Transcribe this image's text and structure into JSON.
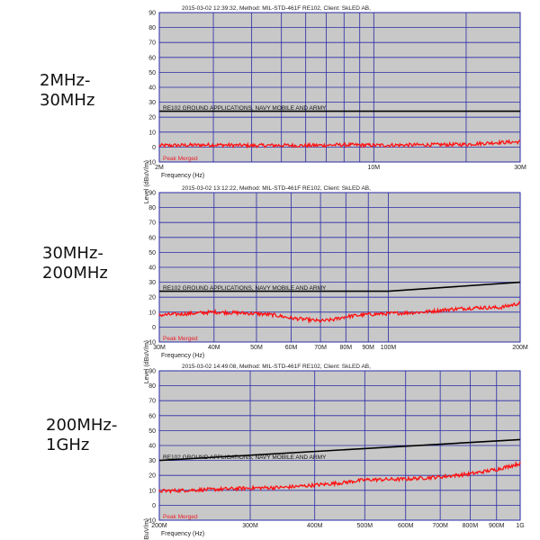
{
  "range_labels": [
    "2MHz-\n30MHz",
    "30MHz-\n200MHz",
    "200MHz-\n1GHz"
  ],
  "colors": {
    "plot_bg": "#c8c8c8",
    "grid": "#2a2aa8",
    "limit": "#000000",
    "measured": "#ff1010",
    "legend_text": "#e8202a"
  },
  "chart_data": [
    {
      "type": "line",
      "header": "2015-03-02 12:39:32,  Method: MIL-STD-461F RE102,  Client: SkLED AB,",
      "xlabel": "Frequency (Hz)",
      "ylabel": "Level (dBuV/m)",
      "x_scale": "log",
      "xlim": [
        2000000,
        30000000
      ],
      "ylim": [
        -10,
        90
      ],
      "yticks": [
        90,
        80,
        70,
        60,
        50,
        40,
        30,
        20,
        10,
        0,
        -10
      ],
      "xtick_labels": [
        {
          "value": 2000000,
          "label": "2M"
        },
        {
          "value": 10000000,
          "label": "10M"
        },
        {
          "value": 30000000,
          "label": "30M"
        }
      ],
      "grid_x": [
        2000000,
        3000000,
        4000000,
        5000000,
        6000000,
        7000000,
        8000000,
        9000000,
        10000000,
        20000000,
        30000000
      ],
      "limit_label": "RE102 GROUND APPLICATIONS, NAVY MOBILE AND ARMY",
      "series_label": "Peak Merged",
      "limit_line": {
        "x": [
          2000000,
          30000000
        ],
        "y": [
          24,
          24
        ]
      },
      "measured": {
        "x": [
          2000000,
          3000000,
          4000000,
          5000000,
          6000000,
          8000000,
          10000000,
          15000000,
          20000000,
          25000000,
          30000000
        ],
        "y": [
          1,
          1.5,
          1,
          1.2,
          1,
          1.5,
          1.2,
          1.5,
          1.8,
          3,
          3.5
        ]
      }
    },
    {
      "type": "line",
      "header": "2015-03-02 13:12:22,  Method: MIL-STD-461F RE102,  Client: SkLED AB,",
      "xlabel": "Frequency (Hz)",
      "ylabel": "Level (dBuV/m)",
      "x_scale": "log",
      "xlim": [
        30000000,
        200000000
      ],
      "ylim": [
        -10,
        90
      ],
      "yticks": [
        90,
        80,
        70,
        60,
        50,
        40,
        30,
        20,
        10,
        0,
        -10
      ],
      "xtick_labels": [
        {
          "value": 30000000,
          "label": "30M"
        },
        {
          "value": 40000000,
          "label": "40M"
        },
        {
          "value": 50000000,
          "label": "50M"
        },
        {
          "value": 60000000,
          "label": "60M"
        },
        {
          "value": 70000000,
          "label": "70M"
        },
        {
          "value": 80000000,
          "label": "80M"
        },
        {
          "value": 90000000,
          "label": "90M"
        },
        {
          "value": 100000000,
          "label": "100M"
        },
        {
          "value": 200000000,
          "label": "200M"
        }
      ],
      "grid_x": [
        30000000,
        40000000,
        50000000,
        60000000,
        70000000,
        80000000,
        90000000,
        100000000,
        200000000
      ],
      "limit_label": "RE102 GROUND APPLICATIONS, NAVY MOBILE AND ARMY",
      "series_label": "Peak Merged",
      "limit_line": {
        "x": [
          30000000,
          100000000,
          200000000
        ],
        "y": [
          24,
          24,
          30
        ]
      },
      "measured": {
        "x": [
          30000000,
          35000000,
          40000000,
          45000000,
          50000000,
          55000000,
          60000000,
          65000000,
          70000000,
          75000000,
          80000000,
          90000000,
          100000000,
          120000000,
          140000000,
          160000000,
          180000000,
          200000000
        ],
        "y": [
          8,
          9,
          10,
          9.5,
          9,
          8,
          6,
          5,
          4,
          5,
          7,
          8.5,
          9,
          10,
          12,
          13,
          13,
          16
        ]
      }
    },
    {
      "type": "line",
      "header": "2015-03-02 14:49:08,  Method: MIL-STD-461F RE102,  Client: SkLED AB,",
      "xlabel": "Frequency (Hz)",
      "ylabel": "Level (dBuV/m)",
      "x_scale": "log",
      "xlim": [
        200000000,
        1000000000
      ],
      "ylim": [
        -10,
        90
      ],
      "yticks": [
        90,
        80,
        70,
        60,
        50,
        40,
        30,
        20,
        10,
        0,
        -10
      ],
      "xtick_labels": [
        {
          "value": 200000000,
          "label": "200M"
        },
        {
          "value": 300000000,
          "label": "300M"
        },
        {
          "value": 400000000,
          "label": "400M"
        },
        {
          "value": 500000000,
          "label": "500M"
        },
        {
          "value": 600000000,
          "label": "600M"
        },
        {
          "value": 700000000,
          "label": "700M"
        },
        {
          "value": 800000000,
          "label": "800M"
        },
        {
          "value": 900000000,
          "label": "900M"
        },
        {
          "value": 1000000000,
          "label": "1G"
        }
      ],
      "grid_x": [
        200000000,
        300000000,
        400000000,
        500000000,
        600000000,
        700000000,
        800000000,
        900000000,
        1000000000
      ],
      "limit_label": "RE102 GROUND APPLICATIONS, NAVY MOBILE AND ARMY",
      "series_label": "Peak Merged",
      "limit_line": {
        "x": [
          200000000,
          1000000000
        ],
        "y": [
          30,
          44
        ]
      },
      "measured": {
        "x": [
          200000000,
          250000000,
          300000000,
          350000000,
          400000000,
          450000000,
          500000000,
          600000000,
          700000000,
          800000000,
          900000000,
          1000000000
        ],
        "y": [
          9.5,
          10.5,
          11.5,
          12,
          13.5,
          15,
          17,
          17.5,
          19,
          21,
          24,
          28
        ]
      }
    }
  ]
}
